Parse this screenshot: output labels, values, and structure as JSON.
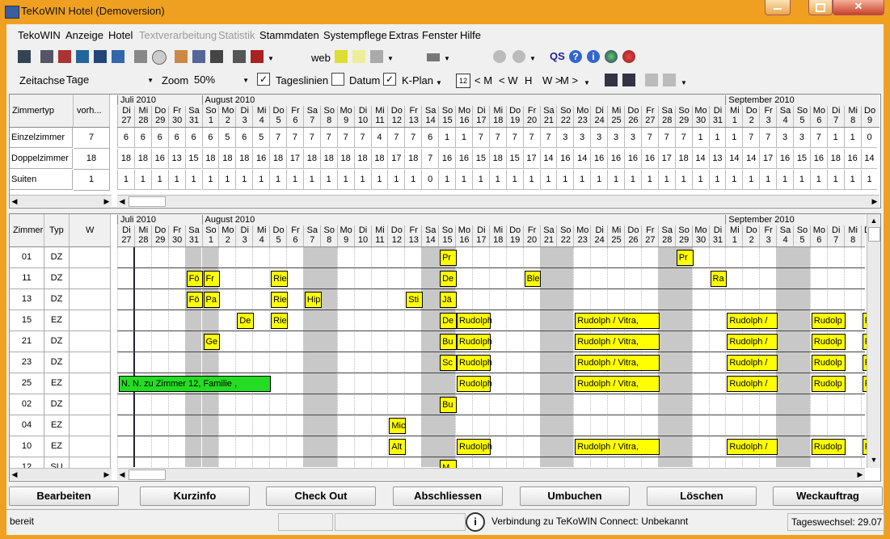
{
  "window": {
    "title": "TeKoWIN Hotel (Demoversion)"
  },
  "menu": {
    "items": [
      {
        "label": "TekoWIN",
        "enabled": true
      },
      {
        "label": "Anzeige",
        "enabled": true
      },
      {
        "label": "Hotel",
        "enabled": true
      },
      {
        "label": "Textverarbeitung",
        "enabled": false
      },
      {
        "label": "Statistik",
        "enabled": false
      },
      {
        "label": "Stammdaten",
        "enabled": true
      },
      {
        "label": "Systempflege",
        "enabled": true
      },
      {
        "label": "Extras",
        "enabled": true
      },
      {
        "label": "Fenster",
        "enabled": true
      },
      {
        "label": "Hilfe",
        "enabled": true
      }
    ]
  },
  "toolbar1": {
    "web_label": "web",
    "qs_label": "QS"
  },
  "toolbar2": {
    "zeitachse_label": "Zeitachse",
    "zeitachse_value": "Tage",
    "zoom_label": "Zoom",
    "zoom_value": "50%",
    "tageslinien_label": "Tageslinien",
    "tageslinien_checked": true,
    "datum_label": "Datum",
    "datum_checked": false,
    "kplan_label": "K-Plan",
    "kplan_checked": true,
    "nav": [
      "< M",
      "< W",
      "H",
      "W >",
      "M >"
    ]
  },
  "months": [
    {
      "label": "Juli 2010"
    },
    {
      "label": "August 2010"
    },
    {
      "label": "September 2010"
    }
  ],
  "days": [
    {
      "wd": "Di",
      "d": "27"
    },
    {
      "wd": "Mi",
      "d": "28"
    },
    {
      "wd": "Do",
      "d": "29"
    },
    {
      "wd": "Fr",
      "d": "30"
    },
    {
      "wd": "Sa",
      "d": "31"
    },
    {
      "wd": "So",
      "d": "1"
    },
    {
      "wd": "Mo",
      "d": "2"
    },
    {
      "wd": "Di",
      "d": "3"
    },
    {
      "wd": "Mi",
      "d": "4"
    },
    {
      "wd": "Do",
      "d": "5"
    },
    {
      "wd": "Fr",
      "d": "6"
    },
    {
      "wd": "Sa",
      "d": "7"
    },
    {
      "wd": "So",
      "d": "8"
    },
    {
      "wd": "Mo",
      "d": "9"
    },
    {
      "wd": "Di",
      "d": "10"
    },
    {
      "wd": "Mi",
      "d": "11"
    },
    {
      "wd": "Do",
      "d": "12"
    },
    {
      "wd": "Fr",
      "d": "13"
    },
    {
      "wd": "Sa",
      "d": "14"
    },
    {
      "wd": "So",
      "d": "15"
    },
    {
      "wd": "Mo",
      "d": "16"
    },
    {
      "wd": "Di",
      "d": "17"
    },
    {
      "wd": "Mi",
      "d": "18"
    },
    {
      "wd": "Do",
      "d": "19"
    },
    {
      "wd": "Fr",
      "d": "20"
    },
    {
      "wd": "Sa",
      "d": "21"
    },
    {
      "wd": "So",
      "d": "22"
    },
    {
      "wd": "Mo",
      "d": "23"
    },
    {
      "wd": "Di",
      "d": "24"
    },
    {
      "wd": "Mi",
      "d": "25"
    },
    {
      "wd": "Do",
      "d": "26"
    },
    {
      "wd": "Fr",
      "d": "27"
    },
    {
      "wd": "Sa",
      "d": "28"
    },
    {
      "wd": "So",
      "d": "29"
    },
    {
      "wd": "Mo",
      "d": "30"
    },
    {
      "wd": "Di",
      "d": "31"
    },
    {
      "wd": "Mi",
      "d": "1"
    },
    {
      "wd": "Do",
      "d": "2"
    },
    {
      "wd": "Fr",
      "d": "3"
    },
    {
      "wd": "Sa",
      "d": "4"
    },
    {
      "wd": "So",
      "d": "5"
    },
    {
      "wd": "Mo",
      "d": "6"
    },
    {
      "wd": "Di",
      "d": "7"
    },
    {
      "wd": "Mi",
      "d": "8"
    },
    {
      "wd": "Do",
      "d": "9"
    }
  ],
  "summary": {
    "headers": {
      "typ": "Zimmertyp",
      "vorh": "vorh..."
    },
    "rows": [
      {
        "typ": "Einzelzimmer",
        "vorh": "7",
        "avail": [
          "6",
          "6",
          "6",
          "6",
          "6",
          "6",
          "5",
          "6",
          "5",
          "7",
          "7",
          "7",
          "7",
          "7",
          "7",
          "4",
          "7",
          "7",
          "6",
          "1",
          "1",
          "7",
          "7",
          "7",
          "7",
          "7",
          "3",
          "3",
          "3",
          "3",
          "3",
          "7",
          "7",
          "7",
          "1",
          "1",
          "1",
          "7",
          "7",
          "3",
          "3",
          "7",
          "1",
          "1",
          "0"
        ]
      },
      {
        "typ": "Doppelzimmer",
        "vorh": "18",
        "avail": [
          "18",
          "18",
          "16",
          "13",
          "15",
          "18",
          "18",
          "18",
          "16",
          "18",
          "17",
          "18",
          "18",
          "18",
          "18",
          "18",
          "17",
          "18",
          "7",
          "16",
          "16",
          "15",
          "18",
          "15",
          "17",
          "14",
          "16",
          "14",
          "16",
          "16",
          "16",
          "16",
          "17",
          "18",
          "14",
          "13",
          "14",
          "14",
          "17",
          "16",
          "15",
          "16",
          "18",
          "16",
          "14"
        ]
      },
      {
        "typ": "Suiten",
        "vorh": "1",
        "avail": [
          "1",
          "1",
          "1",
          "1",
          "1",
          "1",
          "1",
          "1",
          "1",
          "1",
          "1",
          "1",
          "1",
          "1",
          "1",
          "1",
          "1",
          "1",
          "0",
          "1",
          "1",
          "1",
          "1",
          "1",
          "1",
          "1",
          "1",
          "1",
          "1",
          "1",
          "1",
          "1",
          "1",
          "1",
          "1",
          "1",
          "1",
          "1",
          "1",
          "1",
          "1",
          "1",
          "1",
          "1",
          "1"
        ]
      }
    ]
  },
  "plan": {
    "headers": {
      "zimmer": "Zimmer",
      "typ": "Typ",
      "w": "W"
    },
    "rooms": [
      {
        "nr": "01",
        "typ": "DZ",
        "w": ""
      },
      {
        "nr": "11",
        "typ": "DZ",
        "w": ""
      },
      {
        "nr": "13",
        "typ": "DZ",
        "w": ""
      },
      {
        "nr": "15",
        "typ": "EZ",
        "w": ""
      },
      {
        "nr": "21",
        "typ": "DZ",
        "w": ""
      },
      {
        "nr": "23",
        "typ": "DZ",
        "w": ""
      },
      {
        "nr": "25",
        "typ": "EZ",
        "w": ""
      },
      {
        "nr": "02",
        "typ": "DZ",
        "w": ""
      },
      {
        "nr": "04",
        "typ": "EZ",
        "w": ""
      },
      {
        "nr": "10",
        "typ": "EZ",
        "w": ""
      },
      {
        "nr": "12",
        "typ": "SU",
        "w": ""
      }
    ],
    "bookings": [
      {
        "room": 0,
        "start": 19,
        "len": 1,
        "label": "Pr",
        "color": "#ffff00"
      },
      {
        "room": 0,
        "start": 33,
        "len": 1,
        "label": "Pr",
        "color": "#ffff00"
      },
      {
        "room": 1,
        "start": 4,
        "len": 1,
        "label": "Fö",
        "color": "#ffff00"
      },
      {
        "room": 1,
        "start": 5,
        "len": 1,
        "label": "Fr",
        "color": "#ffff00"
      },
      {
        "room": 1,
        "start": 9,
        "len": 1,
        "label": "Rie",
        "color": "#ffff00"
      },
      {
        "room": 1,
        "start": 19,
        "len": 1,
        "label": "De",
        "color": "#ffff00"
      },
      {
        "room": 1,
        "start": 24,
        "len": 1,
        "label": "Ble",
        "color": "#ffff00"
      },
      {
        "room": 1,
        "start": 35,
        "len": 1,
        "label": "Ra",
        "color": "#ffff00"
      },
      {
        "room": 2,
        "start": 4,
        "len": 1,
        "label": "Fö",
        "color": "#ffff00"
      },
      {
        "room": 2,
        "start": 5,
        "len": 1,
        "label": "Pa",
        "color": "#ffff00"
      },
      {
        "room": 2,
        "start": 9,
        "len": 1,
        "label": "Rie",
        "color": "#ffff00"
      },
      {
        "room": 2,
        "start": 11,
        "len": 1,
        "label": "Hip",
        "color": "#ffff00"
      },
      {
        "room": 2,
        "start": 17,
        "len": 1,
        "label": "Sti",
        "color": "#ffff00"
      },
      {
        "room": 2,
        "start": 19,
        "len": 1,
        "label": "Jä",
        "color": "#ffff00"
      },
      {
        "room": 3,
        "start": 7,
        "len": 1,
        "label": "De",
        "color": "#ffff00"
      },
      {
        "room": 3,
        "start": 9,
        "len": 1,
        "label": "Rie",
        "color": "#ffff00"
      },
      {
        "room": 3,
        "start": 19,
        "len": 1,
        "label": "De",
        "color": "#ffff00"
      },
      {
        "room": 3,
        "start": 20,
        "len": 2,
        "label": "Rudolph",
        "color": "#ffff00"
      },
      {
        "room": 3,
        "start": 27,
        "len": 5,
        "label": "Rudolph / Vitra,",
        "color": "#ffff00"
      },
      {
        "room": 3,
        "start": 36,
        "len": 3,
        "label": "Rudolph /",
        "color": "#ffff00"
      },
      {
        "room": 3,
        "start": 41,
        "len": 2,
        "label": "Rudolp",
        "color": "#ffff00"
      },
      {
        "room": 3,
        "start": 44,
        "len": 1,
        "label": "R",
        "color": "#ffff00"
      },
      {
        "room": 4,
        "start": 5,
        "len": 1,
        "label": "Ge",
        "color": "#ffff00"
      },
      {
        "room": 4,
        "start": 19,
        "len": 1,
        "label": "Bu",
        "color": "#ffff00"
      },
      {
        "room": 4,
        "start": 20,
        "len": 2,
        "label": "Rudolph",
        "color": "#ffff00"
      },
      {
        "room": 4,
        "start": 27,
        "len": 5,
        "label": "Rudolph / Vitra,",
        "color": "#ffff00"
      },
      {
        "room": 4,
        "start": 36,
        "len": 3,
        "label": "Rudolph /",
        "color": "#ffff00"
      },
      {
        "room": 4,
        "start": 41,
        "len": 2,
        "label": "Rudolp",
        "color": "#ffff00"
      },
      {
        "room": 4,
        "start": 44,
        "len": 1,
        "label": "R",
        "color": "#ffff00"
      },
      {
        "room": 5,
        "start": 19,
        "len": 1,
        "label": "Sc",
        "color": "#ffff00"
      },
      {
        "room": 5,
        "start": 20,
        "len": 2,
        "label": "Rudolph",
        "color": "#ffff00"
      },
      {
        "room": 5,
        "start": 27,
        "len": 5,
        "label": "Rudolph / Vitra,",
        "color": "#ffff00"
      },
      {
        "room": 5,
        "start": 36,
        "len": 3,
        "label": "Rudolph /",
        "color": "#ffff00"
      },
      {
        "room": 5,
        "start": 41,
        "len": 2,
        "label": "Rudolp",
        "color": "#ffff00"
      },
      {
        "room": 5,
        "start": 44,
        "len": 1,
        "label": "R",
        "color": "#ffff00"
      },
      {
        "room": 6,
        "start": 0,
        "len": 9,
        "label": "N. N. zu Zimmer 12, Familie ,",
        "color": "#22dd22"
      },
      {
        "room": 6,
        "start": 20,
        "len": 2,
        "label": "Rudolph",
        "color": "#ffff00"
      },
      {
        "room": 6,
        "start": 27,
        "len": 5,
        "label": "Rudolph / Vitra,",
        "color": "#ffff00"
      },
      {
        "room": 6,
        "start": 36,
        "len": 3,
        "label": "Rudolph /",
        "color": "#ffff00"
      },
      {
        "room": 6,
        "start": 41,
        "len": 2,
        "label": "Rudolp",
        "color": "#ffff00"
      },
      {
        "room": 6,
        "start": 44,
        "len": 1,
        "label": "R",
        "color": "#ffff00"
      },
      {
        "room": 7,
        "start": 19,
        "len": 1,
        "label": "Bu",
        "color": "#ffff00"
      },
      {
        "room": 8,
        "start": 16,
        "len": 1,
        "label": "Mic",
        "color": "#ffff00"
      },
      {
        "room": 9,
        "start": 16,
        "len": 1,
        "label": "Alt",
        "color": "#ffff00"
      },
      {
        "room": 9,
        "start": 20,
        "len": 2,
        "label": "Rudolph",
        "color": "#ffff00"
      },
      {
        "room": 9,
        "start": 27,
        "len": 5,
        "label": "Rudolph / Vitra,",
        "color": "#ffff00"
      },
      {
        "room": 9,
        "start": 36,
        "len": 3,
        "label": "Rudolph /",
        "color": "#ffff00"
      },
      {
        "room": 9,
        "start": 41,
        "len": 2,
        "label": "Rudolp",
        "color": "#ffff00"
      },
      {
        "room": 9,
        "start": 44,
        "len": 1,
        "label": "R",
        "color": "#ffff00"
      },
      {
        "room": 10,
        "start": 19,
        "len": 1,
        "label": "M",
        "color": "#ffff00"
      }
    ]
  },
  "buttons": {
    "bearbeiten": "Bearbeiten",
    "kurzinfo": "Kurzinfo",
    "checkout": "Check Out",
    "abschliessen": "Abschliessen",
    "umbuchen": "Umbuchen",
    "loeschen": "Löschen",
    "weckauftrag": "Weckauftrag"
  },
  "status": {
    "state": "bereit",
    "connection": "Verbindung zu TeKoWIN Connect:  Unbekannt",
    "tageswechsel": "Tageswechsel: 29.07"
  },
  "colors": {
    "frame": "#f0a020",
    "weekend_shade": "#c8c8c8",
    "booking_yellow": "#ffff00",
    "booking_green": "#22dd22"
  }
}
